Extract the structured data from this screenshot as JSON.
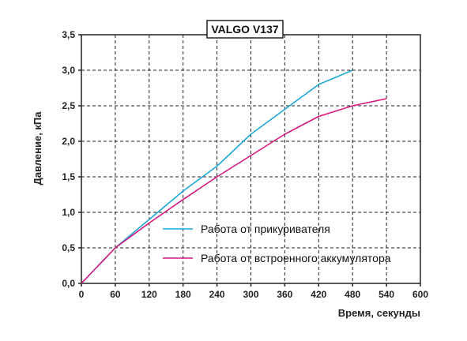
{
  "chart_data": {
    "type": "line",
    "title": "VALGO V137",
    "xlabel": "Время, секунды",
    "ylabel": "Давление, кПа",
    "xlim": [
      0,
      600
    ],
    "ylim": [
      0,
      3.5
    ],
    "xticks": [
      0,
      60,
      120,
      180,
      240,
      300,
      360,
      420,
      480,
      540,
      600
    ],
    "xtick_labels": [
      "0",
      "60",
      "120",
      "180",
      "240",
      "300",
      "360",
      "420",
      "480",
      "540",
      "600"
    ],
    "yticks": [
      0,
      0.5,
      1.0,
      1.5,
      2.0,
      2.5,
      3.0,
      3.5
    ],
    "ytick_labels": [
      "0,0",
      "0,5",
      "1,0",
      "1,5",
      "2,0",
      "2,5",
      "3,0",
      "3,5"
    ],
    "grid": true,
    "legend_position": "center-right",
    "series": [
      {
        "name": "Работа от прикуривателя",
        "color": "#1ea7d8",
        "x": [
          0,
          60,
          120,
          180,
          240,
          300,
          360,
          420,
          480
        ],
        "y": [
          0,
          0.5,
          0.9,
          1.3,
          1.65,
          2.1,
          2.45,
          2.8,
          3.0
        ]
      },
      {
        "name": "Работа от встроенного аккумулятора",
        "color": "#d6177e",
        "x": [
          0,
          60,
          120,
          180,
          240,
          300,
          360,
          420,
          480,
          540
        ],
        "y": [
          0,
          0.5,
          0.85,
          1.18,
          1.5,
          1.8,
          2.1,
          2.35,
          2.5,
          2.6
        ]
      }
    ]
  }
}
